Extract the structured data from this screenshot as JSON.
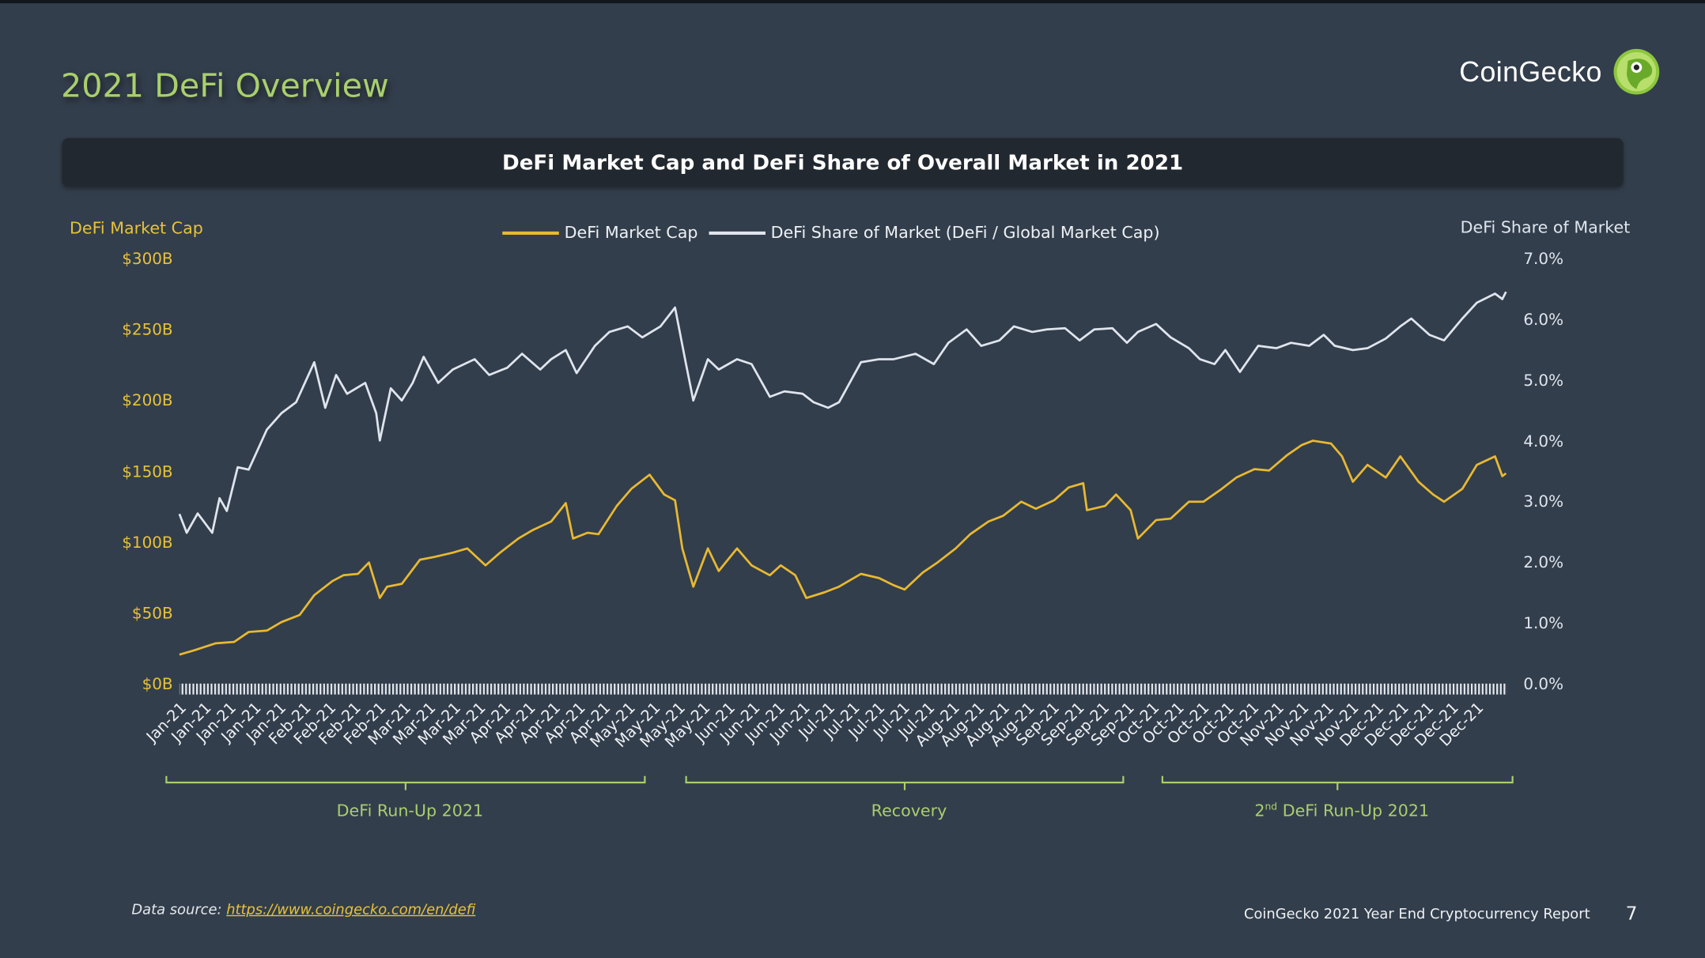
{
  "page": {
    "title": "2021 DeFi Overview",
    "logo_text": "CoinGecko",
    "logo_icon": "gecko-icon",
    "source_label": "Data source:",
    "source_link": "https://www.coingecko.com/en/defi",
    "footer": "CoinGecko 2021 Year End Cryptocurrency Report",
    "page_number": "7"
  },
  "colors": {
    "background": "#333e4c",
    "title_bar": "#22282f",
    "market_cap": "#e8b931",
    "share": "#dfe5ee",
    "accent_green": "#a9cf6c"
  },
  "chart_data": {
    "type": "line",
    "title": "DeFi Market Cap and DeFi Share of Overall Market in 2021",
    "ylabel_left": "DeFi Market Cap",
    "ylabel_right": "DeFi Share of Market",
    "ylim_left": [
      0,
      300
    ],
    "ylim_right": [
      0,
      7
    ],
    "yticks_left": [
      "$0B",
      "$50B",
      "$100B",
      "$150B",
      "$200B",
      "$250B",
      "$300B"
    ],
    "yticks_right": [
      "0.0%",
      "1.0%",
      "2.0%",
      "3.0%",
      "4.0%",
      "5.0%",
      "6.0%",
      "7.0%"
    ],
    "legend_position": "top-center",
    "grid": false,
    "x_tick_labels": [
      "Jan-21",
      "Jan-21",
      "Jan-21",
      "Jan-21",
      "Jan-21",
      "Feb-21",
      "Feb-21",
      "Feb-21",
      "Feb-21",
      "Mar-21",
      "Mar-21",
      "Mar-21",
      "Mar-21",
      "Apr-21",
      "Apr-21",
      "Apr-21",
      "Apr-21",
      "Apr-21",
      "May-21",
      "May-21",
      "May-21",
      "May-21",
      "Jun-21",
      "Jun-21",
      "Jun-21",
      "Jun-21",
      "Jul-21",
      "Jul-21",
      "Jul-21",
      "Jul-21",
      "Jul-21",
      "Aug-21",
      "Aug-21",
      "Aug-21",
      "Aug-21",
      "Sep-21",
      "Sep-21",
      "Sep-21",
      "Sep-21",
      "Oct-21",
      "Oct-21",
      "Oct-21",
      "Oct-21",
      "Oct-21",
      "Nov-21",
      "Nov-21",
      "Nov-21",
      "Nov-21",
      "Dec-21",
      "Dec-21",
      "Dec-21",
      "Dec-21",
      "Dec-21"
    ],
    "periods": [
      {
        "label": "DeFi Run-Up 2021",
        "from": "2021-01-01",
        "to": "2021-05-12"
      },
      {
        "label": "Recovery",
        "from": "2021-05-23",
        "to": "2021-09-22"
      },
      {
        "label_number": "2",
        "label_suffix": "nd",
        "label_rest": " DeFi Run-Up 2021",
        "from": "2021-10-02",
        "to": "2021-12-31"
      }
    ],
    "series": [
      {
        "name": "DeFi Market Cap",
        "axis": "left",
        "unit": "$B",
        "points": [
          [
            "2021-01-01",
            22
          ],
          [
            "2021-01-05",
            25
          ],
          [
            "2021-01-11",
            30
          ],
          [
            "2021-01-16",
            31
          ],
          [
            "2021-01-20",
            38
          ],
          [
            "2021-01-25",
            39
          ],
          [
            "2021-01-29",
            45
          ],
          [
            "2021-02-03",
            50
          ],
          [
            "2021-02-07",
            64
          ],
          [
            "2021-02-12",
            74
          ],
          [
            "2021-02-15",
            78
          ],
          [
            "2021-02-19",
            79
          ],
          [
            "2021-02-22",
            87
          ],
          [
            "2021-02-25",
            62
          ],
          [
            "2021-02-27",
            70
          ],
          [
            "2021-03-03",
            72
          ],
          [
            "2021-03-08",
            89
          ],
          [
            "2021-03-12",
            91
          ],
          [
            "2021-03-17",
            94
          ],
          [
            "2021-03-21",
            97
          ],
          [
            "2021-03-26",
            85
          ],
          [
            "2021-03-30",
            94
          ],
          [
            "2021-04-04",
            104
          ],
          [
            "2021-04-08",
            110
          ],
          [
            "2021-04-13",
            116
          ],
          [
            "2021-04-17",
            129
          ],
          [
            "2021-04-19",
            104
          ],
          [
            "2021-04-23",
            108
          ],
          [
            "2021-04-26",
            107
          ],
          [
            "2021-05-01",
            127
          ],
          [
            "2021-05-05",
            139
          ],
          [
            "2021-05-10",
            149
          ],
          [
            "2021-05-14",
            135
          ],
          [
            "2021-05-17",
            131
          ],
          [
            "2021-05-19",
            97
          ],
          [
            "2021-05-22",
            70
          ],
          [
            "2021-05-26",
            97
          ],
          [
            "2021-05-29",
            81
          ],
          [
            "2021-06-03",
            97
          ],
          [
            "2021-06-07",
            85
          ],
          [
            "2021-06-12",
            78
          ],
          [
            "2021-06-15",
            85
          ],
          [
            "2021-06-19",
            78
          ],
          [
            "2021-06-22",
            62
          ],
          [
            "2021-06-27",
            66
          ],
          [
            "2021-07-01",
            70
          ],
          [
            "2021-07-07",
            79
          ],
          [
            "2021-07-12",
            76
          ],
          [
            "2021-07-16",
            71
          ],
          [
            "2021-07-19",
            68
          ],
          [
            "2021-07-24",
            80
          ],
          [
            "2021-07-28",
            87
          ],
          [
            "2021-08-02",
            97
          ],
          [
            "2021-08-06",
            107
          ],
          [
            "2021-08-11",
            116
          ],
          [
            "2021-08-15",
            120
          ],
          [
            "2021-08-20",
            130
          ],
          [
            "2021-08-24",
            125
          ],
          [
            "2021-08-29",
            131
          ],
          [
            "2021-09-02",
            140
          ],
          [
            "2021-09-06",
            143
          ],
          [
            "2021-09-07",
            124
          ],
          [
            "2021-09-12",
            127
          ],
          [
            "2021-09-15",
            135
          ],
          [
            "2021-09-19",
            124
          ],
          [
            "2021-09-21",
            104
          ],
          [
            "2021-09-26",
            117
          ],
          [
            "2021-09-30",
            118
          ],
          [
            "2021-10-05",
            130
          ],
          [
            "2021-10-09",
            130
          ],
          [
            "2021-10-14",
            139
          ],
          [
            "2021-10-18",
            147
          ],
          [
            "2021-10-23",
            153
          ],
          [
            "2021-10-27",
            152
          ],
          [
            "2021-11-01",
            163
          ],
          [
            "2021-11-05",
            170
          ],
          [
            "2021-11-08",
            173
          ],
          [
            "2021-11-13",
            171
          ],
          [
            "2021-11-16",
            162
          ],
          [
            "2021-11-19",
            144
          ],
          [
            "2021-11-23",
            156
          ],
          [
            "2021-11-28",
            147
          ],
          [
            "2021-12-02",
            162
          ],
          [
            "2021-12-07",
            144
          ],
          [
            "2021-12-11",
            135
          ],
          [
            "2021-12-14",
            130
          ],
          [
            "2021-12-19",
            139
          ],
          [
            "2021-12-23",
            156
          ],
          [
            "2021-12-28",
            162
          ],
          [
            "2021-12-30",
            148
          ],
          [
            "2021-12-31",
            150
          ]
        ]
      },
      {
        "name": "DeFi Share of Market (DeFi / Global Market Cap)",
        "axis": "right",
        "unit": "%",
        "points": [
          [
            "2021-01-01",
            2.83
          ],
          [
            "2021-01-03",
            2.52
          ],
          [
            "2021-01-06",
            2.84
          ],
          [
            "2021-01-10",
            2.52
          ],
          [
            "2021-01-12",
            3.09
          ],
          [
            "2021-01-14",
            2.88
          ],
          [
            "2021-01-17",
            3.6
          ],
          [
            "2021-01-20",
            3.56
          ],
          [
            "2021-01-25",
            4.22
          ],
          [
            "2021-01-29",
            4.49
          ],
          [
            "2021-02-02",
            4.67
          ],
          [
            "2021-02-07",
            5.33
          ],
          [
            "2021-02-10",
            4.58
          ],
          [
            "2021-02-13",
            5.12
          ],
          [
            "2021-02-16",
            4.81
          ],
          [
            "2021-02-21",
            4.99
          ],
          [
            "2021-02-24",
            4.49
          ],
          [
            "2021-02-25",
            4.04
          ],
          [
            "2021-02-28",
            4.9
          ],
          [
            "2021-03-03",
            4.7
          ],
          [
            "2021-03-06",
            4.99
          ],
          [
            "2021-03-09",
            5.42
          ],
          [
            "2021-03-13",
            4.99
          ],
          [
            "2021-03-17",
            5.21
          ],
          [
            "2021-03-23",
            5.38
          ],
          [
            "2021-03-27",
            5.12
          ],
          [
            "2021-04-01",
            5.24
          ],
          [
            "2021-04-05",
            5.47
          ],
          [
            "2021-04-10",
            5.21
          ],
          [
            "2021-04-13",
            5.38
          ],
          [
            "2021-04-17",
            5.53
          ],
          [
            "2021-04-20",
            5.15
          ],
          [
            "2021-04-25",
            5.6
          ],
          [
            "2021-04-29",
            5.83
          ],
          [
            "2021-05-04",
            5.92
          ],
          [
            "2021-05-08",
            5.74
          ],
          [
            "2021-05-13",
            5.92
          ],
          [
            "2021-05-17",
            6.23
          ],
          [
            "2021-05-20",
            5.3
          ],
          [
            "2021-05-22",
            4.7
          ],
          [
            "2021-05-26",
            5.38
          ],
          [
            "2021-05-29",
            5.21
          ],
          [
            "2021-06-03",
            5.38
          ],
          [
            "2021-06-07",
            5.3
          ],
          [
            "2021-06-12",
            4.76
          ],
          [
            "2021-06-16",
            4.85
          ],
          [
            "2021-06-21",
            4.81
          ],
          [
            "2021-06-24",
            4.67
          ],
          [
            "2021-06-28",
            4.58
          ],
          [
            "2021-07-01",
            4.67
          ],
          [
            "2021-07-07",
            5.33
          ],
          [
            "2021-07-12",
            5.38
          ],
          [
            "2021-07-16",
            5.38
          ],
          [
            "2021-07-22",
            5.47
          ],
          [
            "2021-07-27",
            5.3
          ],
          [
            "2021-07-31",
            5.65
          ],
          [
            "2021-08-05",
            5.87
          ],
          [
            "2021-08-09",
            5.6
          ],
          [
            "2021-08-14",
            5.69
          ],
          [
            "2021-08-18",
            5.92
          ],
          [
            "2021-08-23",
            5.83
          ],
          [
            "2021-08-27",
            5.87
          ],
          [
            "2021-09-01",
            5.89
          ],
          [
            "2021-09-05",
            5.69
          ],
          [
            "2021-09-09",
            5.87
          ],
          [
            "2021-09-14",
            5.89
          ],
          [
            "2021-09-18",
            5.65
          ],
          [
            "2021-09-21",
            5.83
          ],
          [
            "2021-09-26",
            5.96
          ],
          [
            "2021-09-30",
            5.74
          ],
          [
            "2021-10-05",
            5.56
          ],
          [
            "2021-10-08",
            5.38
          ],
          [
            "2021-10-12",
            5.3
          ],
          [
            "2021-10-15",
            5.53
          ],
          [
            "2021-10-19",
            5.17
          ],
          [
            "2021-10-24",
            5.6
          ],
          [
            "2021-10-29",
            5.56
          ],
          [
            "2021-11-02",
            5.65
          ],
          [
            "2021-11-07",
            5.6
          ],
          [
            "2021-11-11",
            5.78
          ],
          [
            "2021-11-14",
            5.6
          ],
          [
            "2021-11-19",
            5.53
          ],
          [
            "2021-11-23",
            5.56
          ],
          [
            "2021-11-28",
            5.72
          ],
          [
            "2021-12-02",
            5.92
          ],
          [
            "2021-12-05",
            6.05
          ],
          [
            "2021-12-10",
            5.78
          ],
          [
            "2021-12-14",
            5.69
          ],
          [
            "2021-12-19",
            6.05
          ],
          [
            "2021-12-23",
            6.31
          ],
          [
            "2021-12-28",
            6.46
          ],
          [
            "2021-12-30",
            6.37
          ],
          [
            "2021-12-31",
            6.49
          ]
        ]
      }
    ]
  }
}
